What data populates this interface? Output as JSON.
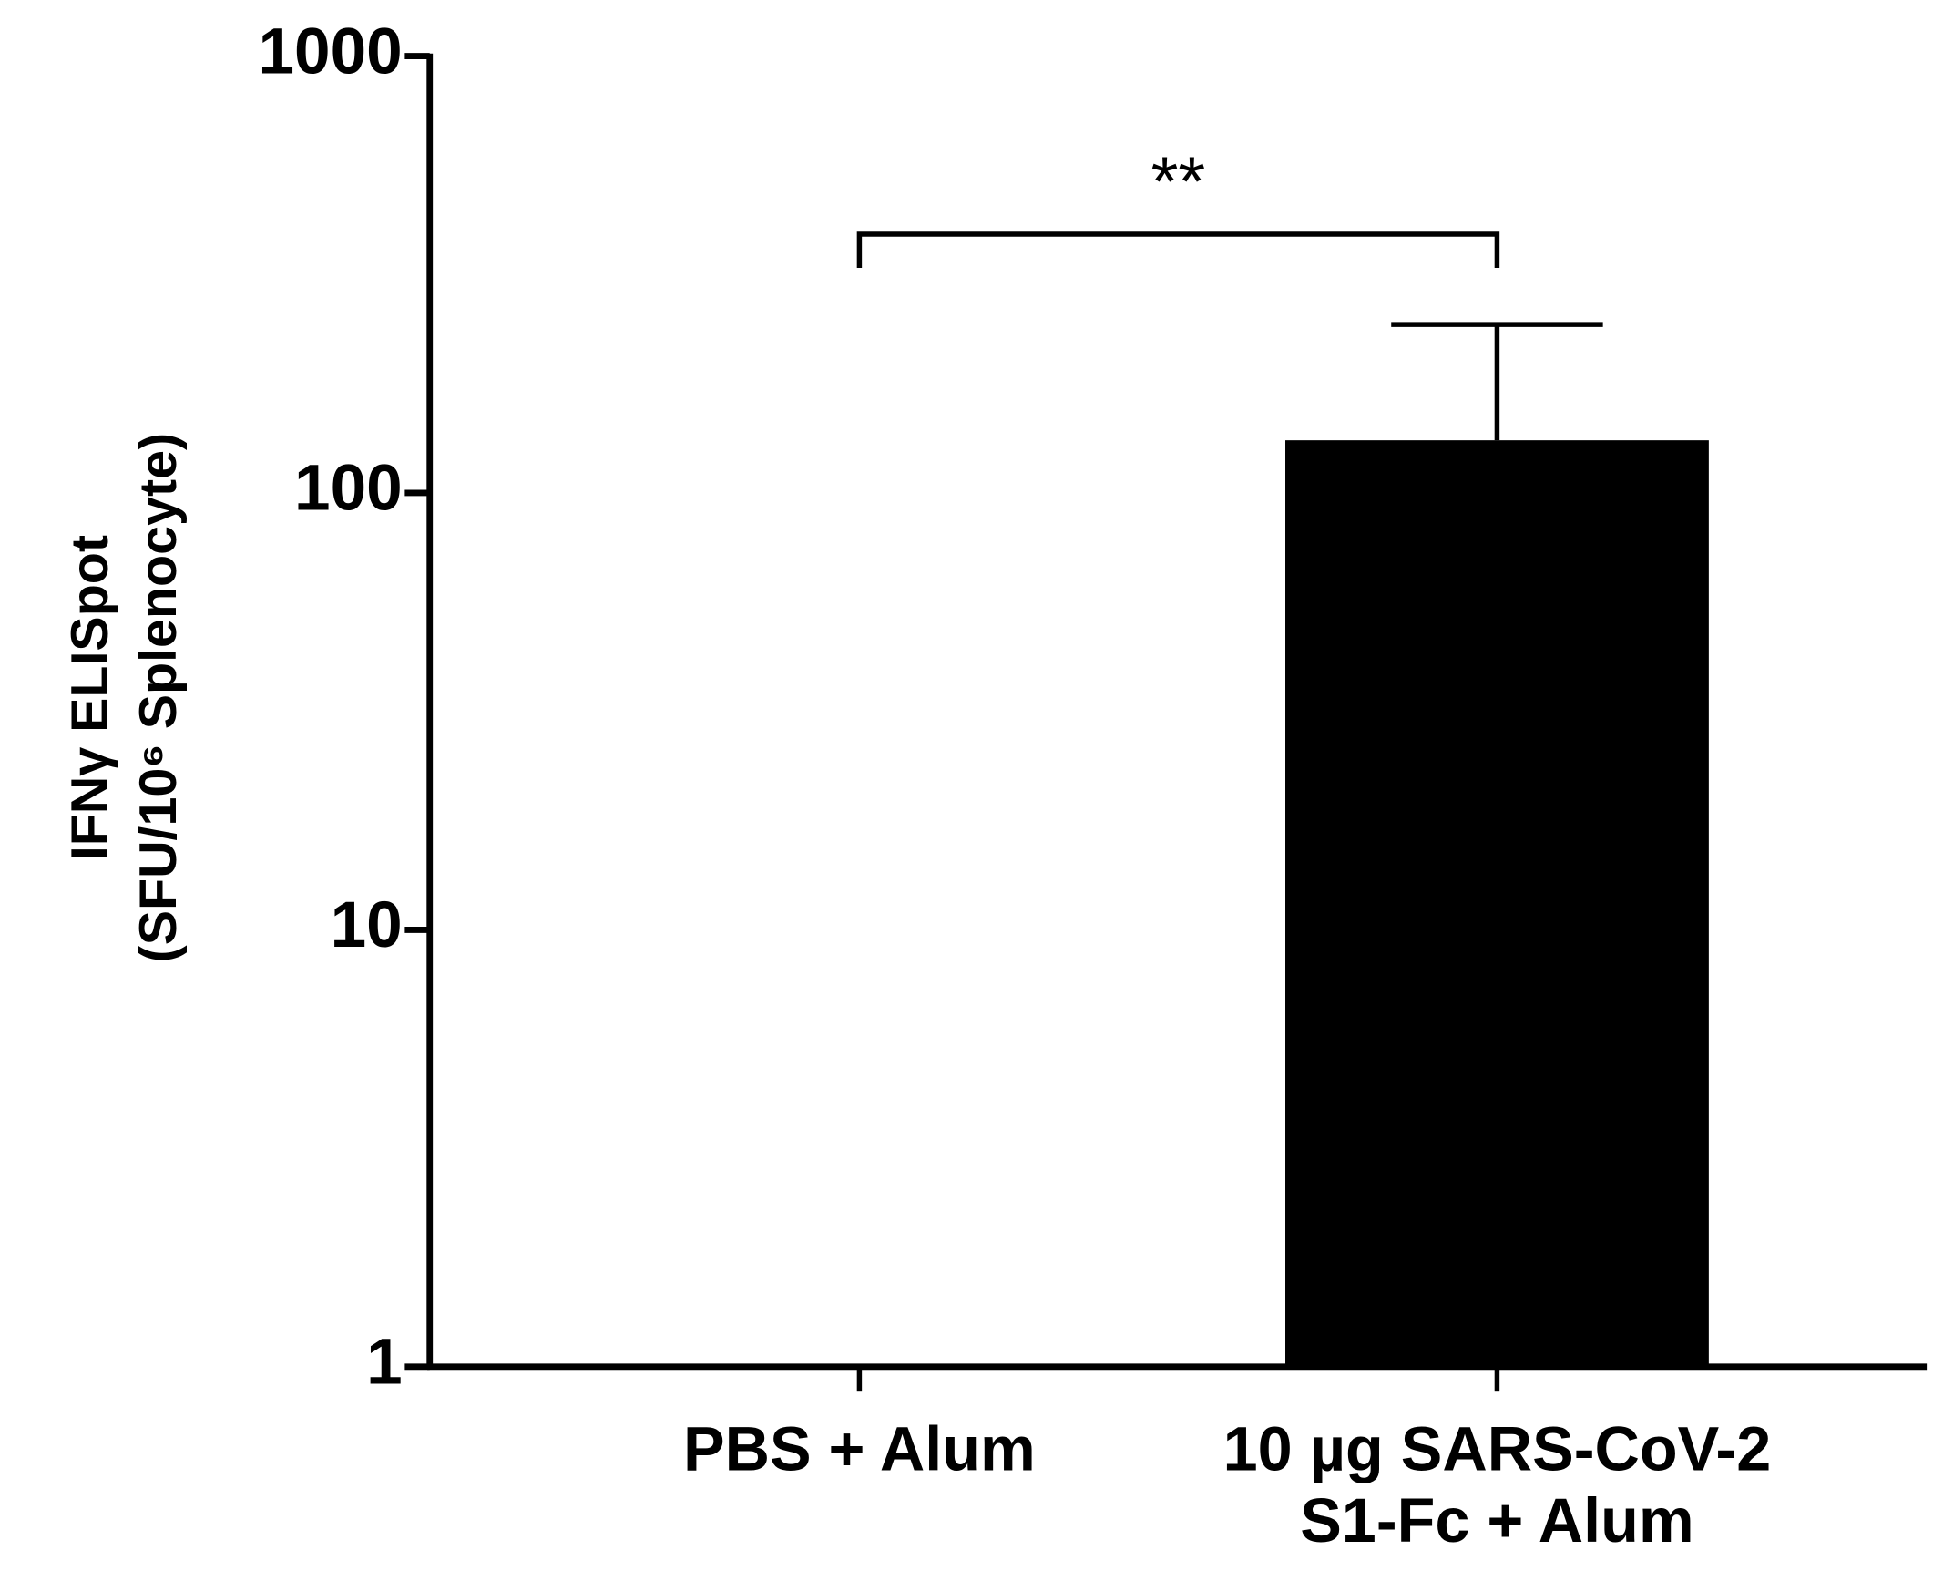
{
  "chart_data": {
    "type": "bar",
    "y_label": [
      "IFNγ ELISpot",
      "(SFU/10⁶ Splenocyte)"
    ],
    "categories": [
      "PBS + Alum",
      "10 µg SARS-CoV-2\nS1-Fc + Alum"
    ],
    "values": [
      1,
      132
    ],
    "errors": [
      null,
      111
    ],
    "color": "#000000",
    "log_scale": true,
    "ylim": [
      1,
      1000
    ],
    "yticks": [
      1,
      10,
      100,
      1000
    ],
    "annotations": [
      {
        "text": "**"
      }
    ]
  }
}
